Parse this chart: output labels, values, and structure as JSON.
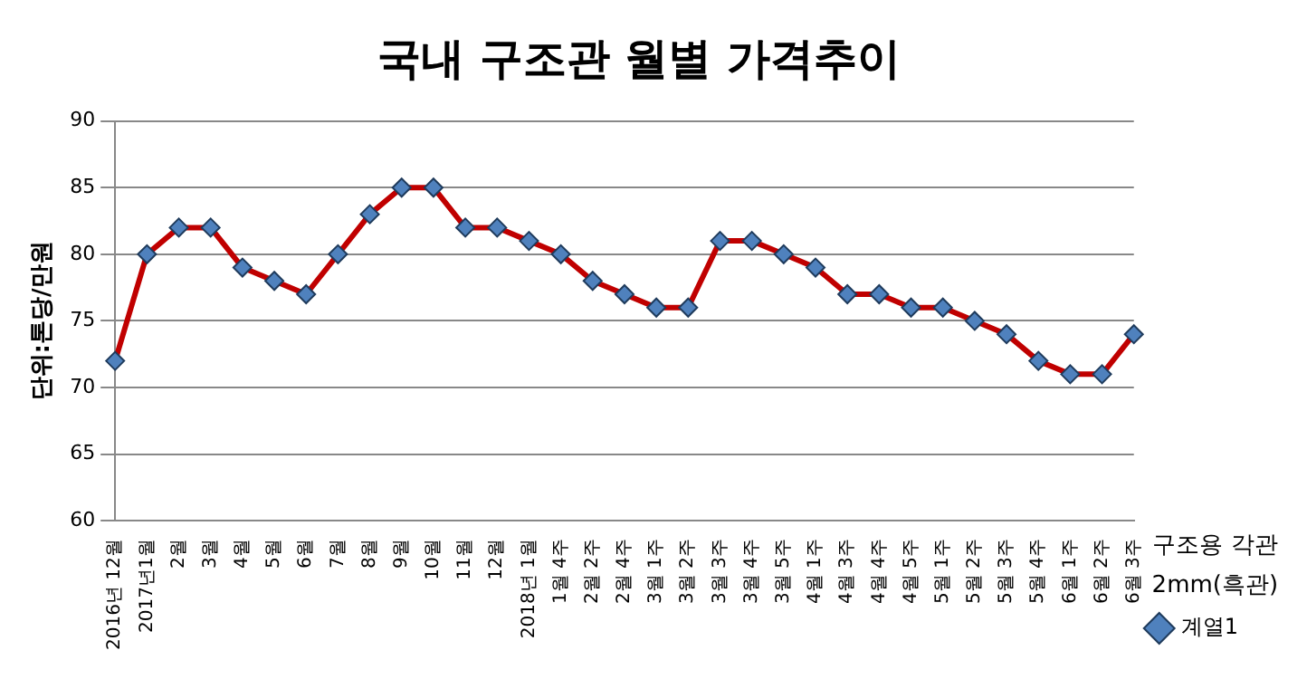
{
  "chart_data": {
    "type": "line",
    "title": "국내 구조관 월별 가격추이",
    "ylabel": "단위:톤당/만원",
    "annotations": [
      "구조용 각관 2mm(흑관)"
    ],
    "categories": [
      "2016년 12월",
      "2017년1월",
      "2월",
      "3월",
      "4월",
      "5월",
      "6월",
      "7월",
      "8월",
      "9월",
      "10월",
      "11월",
      "12월",
      "2018년 1월",
      "1월 4주",
      "2월 2주",
      "2월 4주",
      "3월 1주",
      "3월 2주",
      "3월 3주",
      "3월 4주",
      "3월 5주",
      "4월 1주",
      "4월 3주",
      "4월 4주",
      "4월 5주",
      "5월 1주",
      "5월 2주",
      "5월 3주",
      "5월 4주",
      "6월 1주",
      "6월 2주",
      "6월 3주"
    ],
    "series": [
      {
        "name": "계열1",
        "color": "#c00000",
        "values": [
          72,
          80,
          82,
          82,
          79,
          78,
          77,
          80,
          83,
          85,
          85,
          82,
          82,
          81,
          80,
          78,
          77,
          76,
          76,
          81,
          81,
          80,
          79,
          77,
          77,
          76,
          76,
          75,
          74,
          72,
          71,
          71,
          74
        ]
      }
    ],
    "ylim": [
      60,
      90
    ],
    "yticks": [
      60,
      65,
      70,
      75,
      80,
      85,
      90
    ],
    "grid": "y",
    "legend": "bottom right",
    "marker": "diamond",
    "line_style": "solid"
  }
}
